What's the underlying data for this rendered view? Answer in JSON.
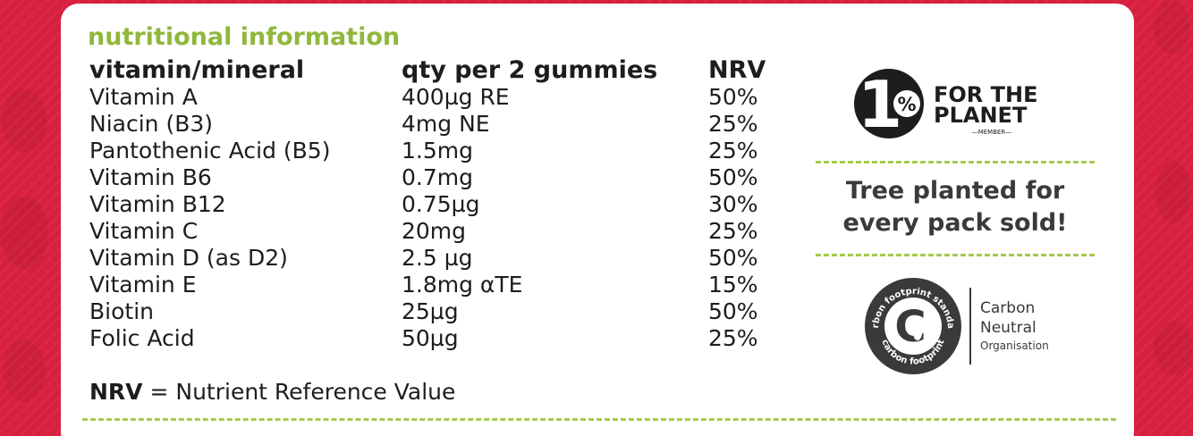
{
  "title": "nutritional information",
  "table": {
    "headers": {
      "name": "vitamin/mineral",
      "qty": "qty per 2 gummies",
      "nrv": "NRV"
    },
    "rows": [
      {
        "name": "Vitamin A",
        "qty": "400µg RE",
        "nrv": "50%"
      },
      {
        "name": "Niacin (B3)",
        "qty": "4mg NE",
        "nrv": "25%"
      },
      {
        "name": "Pantothenic Acid (B5)",
        "qty": "1.5mg",
        "nrv": "25%"
      },
      {
        "name": "Vitamin B6",
        "qty": "0.7mg",
        "nrv": "50%"
      },
      {
        "name": "Vitamin B12",
        "qty": "0.75µg",
        "nrv": "30%"
      },
      {
        "name": "Vitamin C",
        "qty": "20mg",
        "nrv": "25%"
      },
      {
        "name": "Vitamin D (as D2)",
        "qty": "2.5 µg",
        "nrv": "50%"
      },
      {
        "name": "Vitamin E",
        "qty": "1.8mg αTE",
        "nrv": "15%"
      },
      {
        "name": "Biotin",
        "qty": "25µg",
        "nrv": "50%"
      },
      {
        "name": "Folic Acid",
        "qty": "50µg",
        "nrv": "25%"
      }
    ]
  },
  "footnote": {
    "abbr": "NRV",
    "text": " = Nutrient Reference Value"
  },
  "planet_logo": {
    "number": "1",
    "percent": "%",
    "line1": "FOR THE",
    "line2": "PLANET",
    "member": "—MEMBER—"
  },
  "tree_text": {
    "line1": "Tree planted for",
    "line2": "every pack sold!"
  },
  "carbon": {
    "ring_text_top": "carbon footprint standard",
    "ring_text_bottom": "carbon footprint",
    "letter": "C",
    "line1": "Carbon",
    "line2": "Neutral",
    "line3": "Organisation"
  },
  "colors": {
    "background": "#d7203f",
    "title_green": "#8fb83c",
    "text_dark": "#1d1d1b",
    "dash_green": "#a7c84e"
  }
}
